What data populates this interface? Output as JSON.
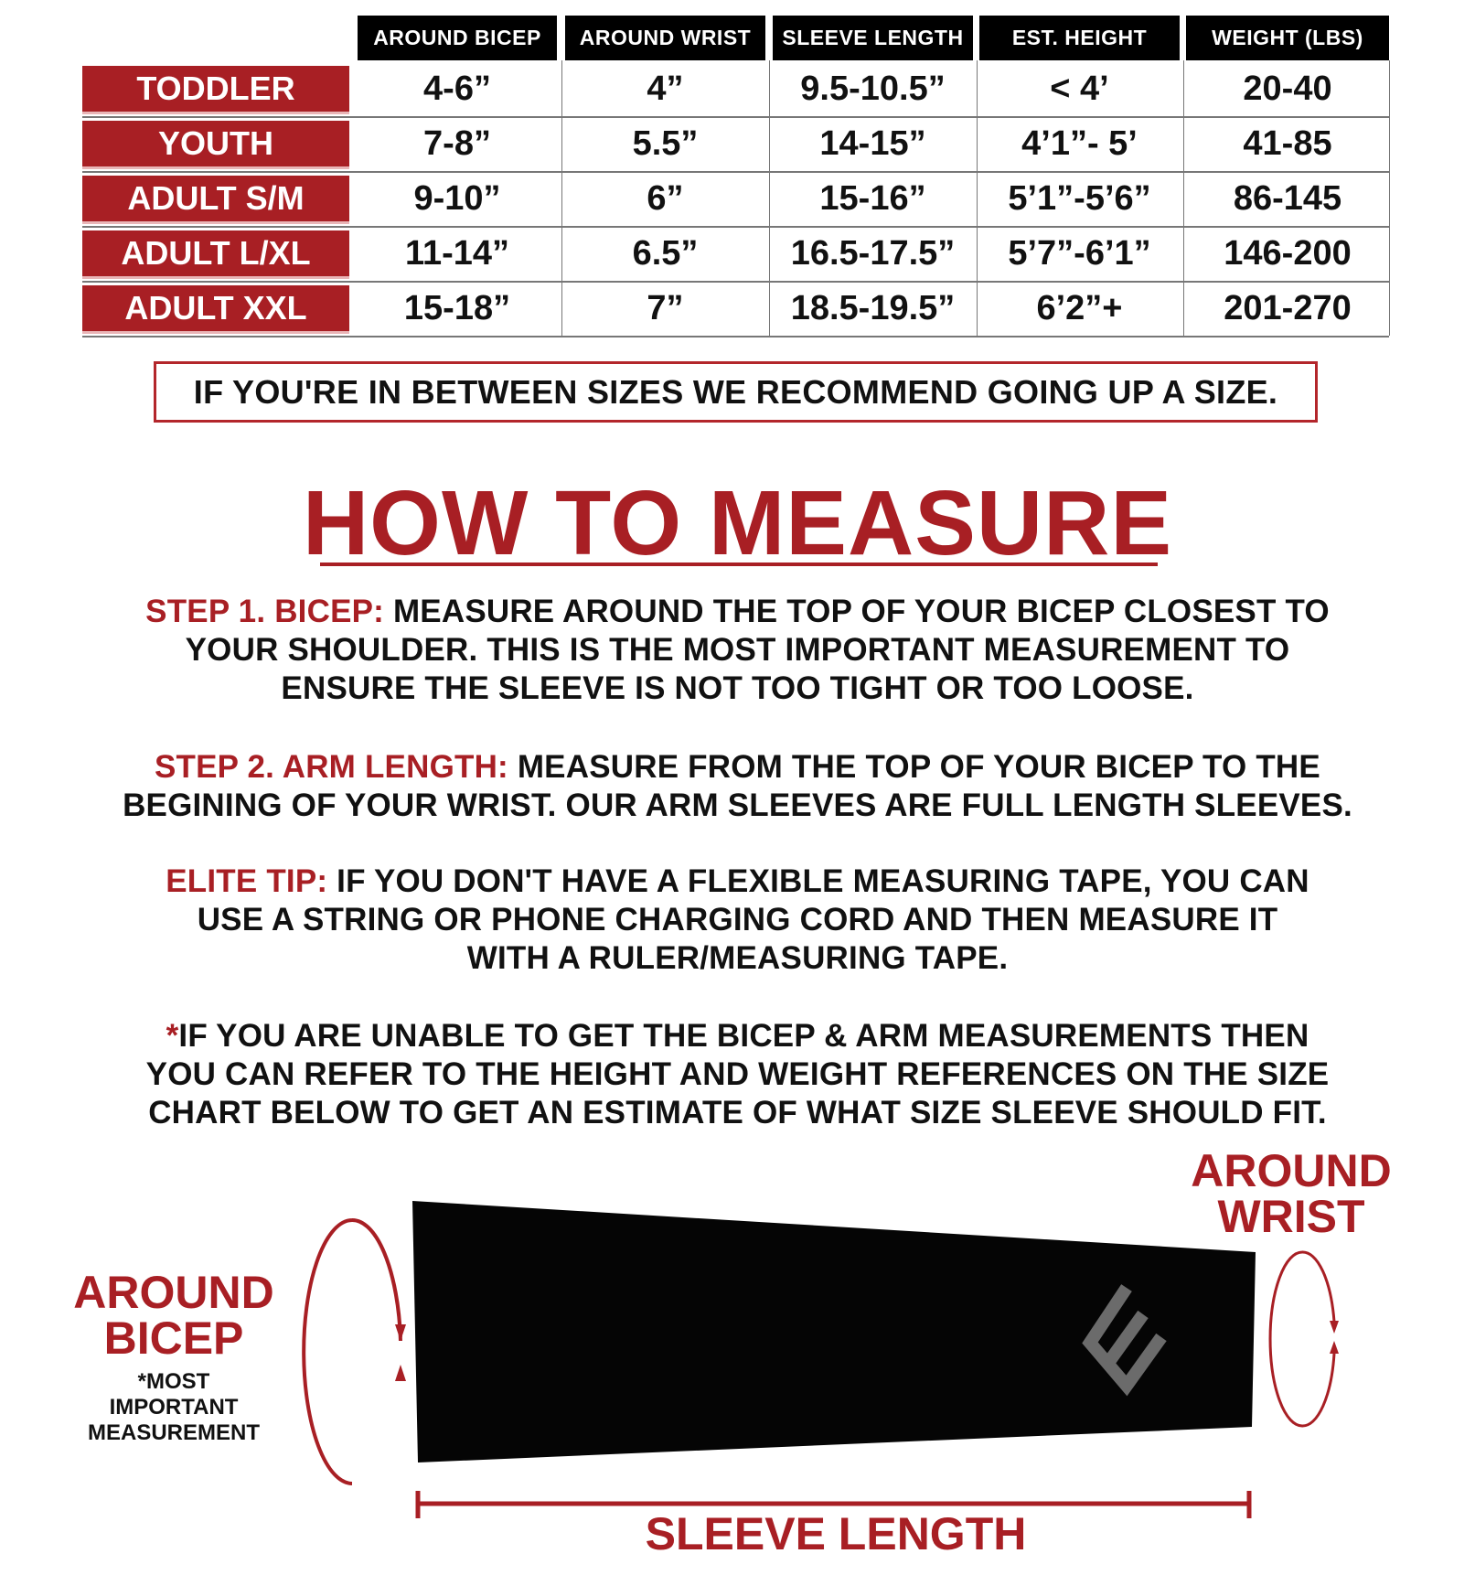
{
  "size_chart": {
    "columns": [
      "AROUND BICEP",
      "AROUND WRIST",
      "SLEEVE LENGTH",
      "EST. HEIGHT",
      "WEIGHT (LBS)"
    ],
    "rows": [
      {
        "size": "TODDLER",
        "values": [
          "4-6”",
          "4”",
          "9.5-10.5”",
          "< 4’",
          "20-40"
        ]
      },
      {
        "size": "YOUTH",
        "values": [
          "7-8”",
          "5.5”",
          "14-15”",
          "4’1”- 5’",
          "41-85"
        ]
      },
      {
        "size": "ADULT S/M",
        "values": [
          "9-10”",
          "6”",
          "15-16”",
          "5’1”-5’6”",
          "86-145"
        ]
      },
      {
        "size": "ADULT L/XL",
        "values": [
          "11-14”",
          "6.5”",
          "16.5-17.5”",
          "5’7”-6’1”",
          "146-200"
        ]
      },
      {
        "size": "ADULT XXL",
        "values": [
          "15-18”",
          "7”",
          "18.5-19.5”",
          "6’2”+",
          "201-270"
        ]
      }
    ]
  },
  "size_note": "IF YOU'RE IN BETWEEN SIZES WE RECOMMEND GOING UP A SIZE.",
  "how_to_measure": {
    "title": "HOW TO MEASURE",
    "steps": [
      {
        "label": "STEP 1. BICEP:",
        "lines": [
          " MEASURE AROUND THE TOP OF YOUR BICEP CLOSEST TO",
          "YOUR SHOULDER. THIS IS THE MOST IMPORTANT MEASUREMENT TO",
          "ENSURE THE SLEEVE IS NOT TOO TIGHT OR TOO LOOSE."
        ]
      },
      {
        "label": "STEP 2. ARM LENGTH:",
        "lines": [
          " MEASURE FROM THE TOP OF YOUR BICEP TO THE",
          "BEGINING OF YOUR WRIST. OUR ARM SLEEVES ARE FULL LENGTH SLEEVES."
        ]
      },
      {
        "label": "ELITE TIP:",
        "lines": [
          " IF YOU DON'T HAVE A FLEXIBLE MEASURING TAPE, YOU CAN",
          "USE A STRING OR PHONE CHARGING CORD AND THEN MEASURE IT",
          "WITH A RULER/MEASURING TAPE."
        ]
      },
      {
        "label": "*",
        "lines": [
          "IF YOU ARE UNABLE TO GET THE BICEP & ARM MEASUREMENTS THEN",
          "YOU CAN REFER TO THE HEIGHT AND WEIGHT REFERENCES ON THE SIZE",
          "CHART BELOW TO GET AN ESTIMATE OF WHAT SIZE SLEEVE SHOULD FIT."
        ]
      }
    ]
  },
  "diagram": {
    "around_bicep": [
      "AROUND",
      "BICEP"
    ],
    "bicep_note": [
      "*MOST",
      "IMPORTANT",
      "MEASUREMENT"
    ],
    "around_wrist": [
      "AROUND",
      "WRIST"
    ],
    "sleeve_length": "SLEEVE LENGTH",
    "logo_icon": "e-logo-icon"
  },
  "colors": {
    "accent": "#a81f24",
    "header_bg": "#000000",
    "logo": "#6b6b6b"
  }
}
